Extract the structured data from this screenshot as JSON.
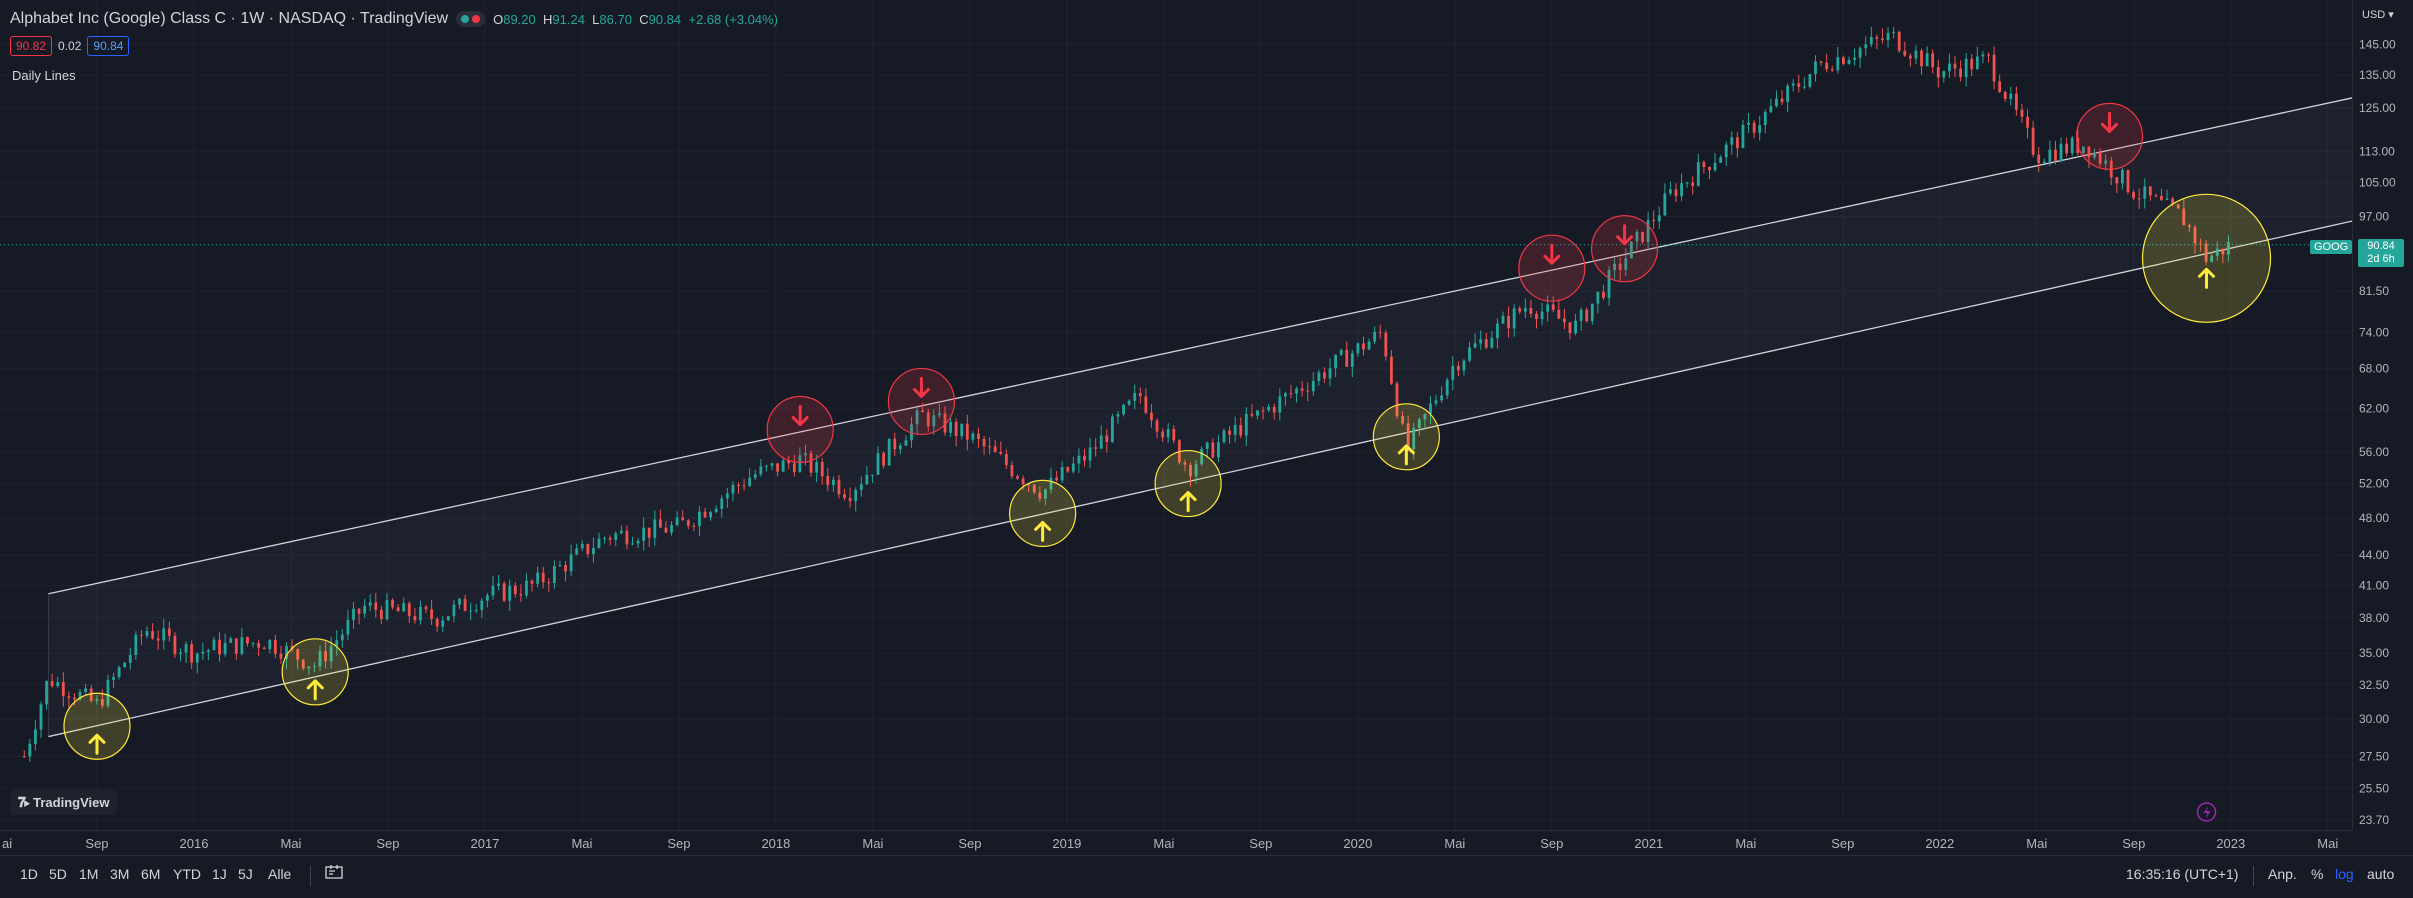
{
  "header": {
    "title": "Alphabet Inc (Google) Class C · 1W · NASDAQ · TradingView",
    "ohlc": {
      "o_label": "O",
      "o": "89.20",
      "h_label": "H",
      "h": "91.24",
      "l_label": "L",
      "l": "86.70",
      "c_label": "C",
      "c": "90.84",
      "change": "+2.68 (+3.04%)"
    },
    "bid": "90.82",
    "spread": "0.02",
    "ask": "90.84",
    "indicator": "Daily Lines"
  },
  "price_axis": {
    "currency": "USD",
    "ticks": [
      "145.00",
      "135.00",
      "125.00",
      "113.00",
      "105.00",
      "97.00",
      "90.84",
      "81.50",
      "74.00",
      "68.00",
      "62.00",
      "56.00",
      "52.00",
      "48.00",
      "44.00",
      "41.00",
      "38.00",
      "35.00",
      "32.50",
      "30.00",
      "27.50",
      "25.50",
      "23.70"
    ],
    "current_price": "90.84",
    "countdown": "2d 6h",
    "symbol": "GOOG"
  },
  "time_axis": {
    "labels": [
      "ai",
      "Sep",
      "2016",
      "Mai",
      "Sep",
      "2017",
      "Mai",
      "Sep",
      "2018",
      "Mai",
      "Sep",
      "2019",
      "Mai",
      "Sep",
      "2020",
      "Mai",
      "Sep",
      "2021",
      "Mai",
      "Sep",
      "2022",
      "Mai",
      "Sep",
      "2023",
      "Mai"
    ]
  },
  "toolbar": {
    "ranges": [
      "1D",
      "5D",
      "1M",
      "3M",
      "6M",
      "YTD",
      "1J",
      "5J",
      "Alle"
    ],
    "time": "16:35:16 (UTC+1)",
    "adj": "Anp.",
    "pct": "%",
    "log": "log",
    "auto": "auto"
  },
  "logo": "TradingView",
  "colors": {
    "up": "#26a69a",
    "down": "#ef5350",
    "sell_marker": "#f23645",
    "buy_marker": "#ffeb3b",
    "background": "#161a25"
  },
  "chart_data": {
    "type": "candlestick",
    "symbol": "GOOG",
    "interval": "1W",
    "scale": "log",
    "y_range": [
      23.7,
      150
    ],
    "x_range": [
      "2015-05",
      "2023-06"
    ],
    "channel": {
      "upper": [
        {
          "date": "2015-07",
          "price": 40.2
        },
        {
          "date": "2023-06",
          "price": 128
        }
      ],
      "lower": [
        {
          "date": "2015-07",
          "price": 28.8
        },
        {
          "date": "2023-06",
          "price": 96
        }
      ]
    },
    "buy_markers": [
      {
        "date": "2015-09",
        "price": 29.5
      },
      {
        "date": "2016-06",
        "price": 33.5
      },
      {
        "date": "2018-12",
        "price": 48.5
      },
      {
        "date": "2019-06",
        "price": 52
      },
      {
        "date": "2020-03",
        "price": 58
      },
      {
        "date": "2022-12",
        "price": 88
      }
    ],
    "sell_markers": [
      {
        "date": "2018-02",
        "price": 59
      },
      {
        "date": "2018-07",
        "price": 63
      },
      {
        "date": "2020-09",
        "price": 86
      },
      {
        "date": "2020-12",
        "price": 90
      },
      {
        "date": "2022-08",
        "price": 117
      }
    ],
    "closes": [
      {
        "date": "2015-06",
        "close": 27.5
      },
      {
        "date": "2015-07",
        "close": 33
      },
      {
        "date": "2015-09",
        "close": 31
      },
      {
        "date": "2015-11",
        "close": 37
      },
      {
        "date": "2016-01",
        "close": 35
      },
      {
        "date": "2016-02",
        "close": 35.5
      },
      {
        "date": "2016-04",
        "close": 36
      },
      {
        "date": "2016-06",
        "close": 34
      },
      {
        "date": "2016-08",
        "close": 39
      },
      {
        "date": "2016-11",
        "close": 38
      },
      {
        "date": "2017-01",
        "close": 40
      },
      {
        "date": "2017-03",
        "close": 41
      },
      {
        "date": "2017-06",
        "close": 46
      },
      {
        "date": "2017-09",
        "close": 47
      },
      {
        "date": "2017-12",
        "close": 53
      },
      {
        "date": "2018-02",
        "close": 55
      },
      {
        "date": "2018-04",
        "close": 51
      },
      {
        "date": "2018-07",
        "close": 61
      },
      {
        "date": "2018-09",
        "close": 58
      },
      {
        "date": "2018-12",
        "close": 51
      },
      {
        "date": "2019-02",
        "close": 56
      },
      {
        "date": "2019-04",
        "close": 64
      },
      {
        "date": "2019-06",
        "close": 54
      },
      {
        "date": "2019-08",
        "close": 59
      },
      {
        "date": "2019-11",
        "close": 66
      },
      {
        "date": "2020-02",
        "close": 74
      },
      {
        "date": "2020-03",
        "close": 56
      },
      {
        "date": "2020-05",
        "close": 69
      },
      {
        "date": "2020-08",
        "close": 79
      },
      {
        "date": "2020-10",
        "close": 75
      },
      {
        "date": "2020-12",
        "close": 88
      },
      {
        "date": "2021-02",
        "close": 103
      },
      {
        "date": "2021-05",
        "close": 118
      },
      {
        "date": "2021-08",
        "close": 138
      },
      {
        "date": "2021-11",
        "close": 148
      },
      {
        "date": "2022-01",
        "close": 136
      },
      {
        "date": "2022-03",
        "close": 140
      },
      {
        "date": "2022-05",
        "close": 112
      },
      {
        "date": "2022-07",
        "close": 115
      },
      {
        "date": "2022-09",
        "close": 103
      },
      {
        "date": "2022-11",
        "close": 97
      },
      {
        "date": "2022-12",
        "close": 88
      },
      {
        "date": "2023-01",
        "close": 90.84
      }
    ]
  }
}
